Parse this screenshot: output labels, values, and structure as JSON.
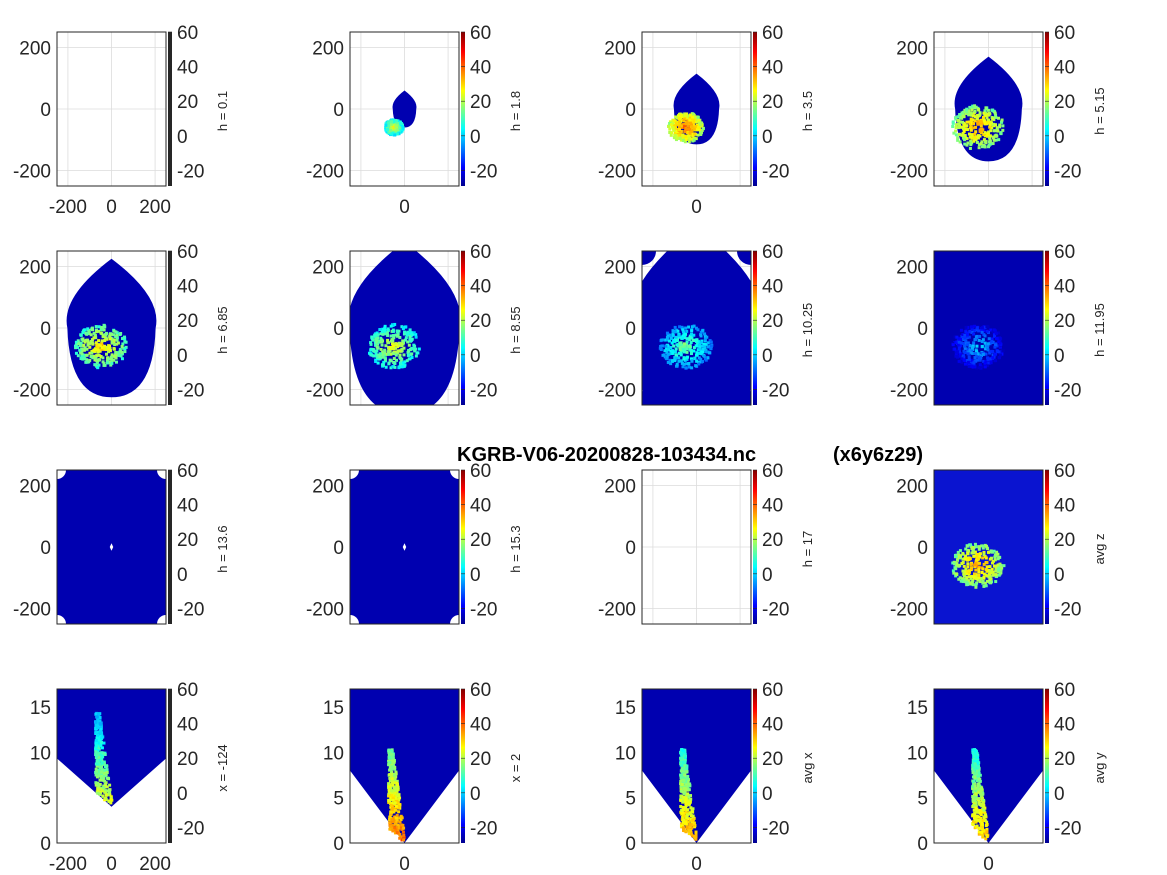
{
  "figure_title": "KGRB-V06-20200828-103434.nc",
  "figure_subtitle": "(x6y6z29)",
  "colormap": "jet",
  "colors": {
    "axis": "#262626",
    "grid": "#dcdcdc",
    "background": "#ffffff",
    "no_echo_blue": "#0000b0"
  },
  "chart_data": [
    {
      "id": "p1",
      "type": "heatmap",
      "view": "plan",
      "cblabel": "h = 0.1",
      "xlim": [
        -250,
        250
      ],
      "ylim": [
        -250,
        250
      ],
      "xticks": [
        "-200",
        "0",
        "200"
      ],
      "yticks": [
        "200",
        "0",
        "-200"
      ],
      "clim": [
        -29,
        60
      ],
      "cbticks": [
        "60",
        "40",
        "20",
        "0",
        "-20"
      ],
      "colorbar_style": "black",
      "content": "empty"
    },
    {
      "id": "p2",
      "type": "heatmap",
      "view": "plan",
      "cblabel": "h = 1.8",
      "xlim": [
        -250,
        250
      ],
      "ylim": [
        -250,
        250
      ],
      "xticks": [
        "0"
      ],
      "yticks": [
        "200",
        "0",
        "-200"
      ],
      "clim": [
        -29,
        60
      ],
      "cbticks": [
        "60",
        "40",
        "20",
        "0",
        "-20"
      ],
      "colorbar_style": "jet",
      "coverage_radius": 60,
      "echo_max_dbz": 30
    },
    {
      "id": "p3",
      "type": "heatmap",
      "view": "plan",
      "cblabel": "h = 3.5",
      "xlim": [
        -250,
        250
      ],
      "ylim": [
        -250,
        250
      ],
      "xticks": [
        "0"
      ],
      "yticks": [
        "200",
        "0",
        "-200"
      ],
      "clim": [
        -29,
        60
      ],
      "cbticks": [
        "60",
        "40",
        "20",
        "0",
        "-20"
      ],
      "colorbar_style": "jet",
      "coverage_radius": 115,
      "echo_max_dbz": 45
    },
    {
      "id": "p4",
      "type": "heatmap",
      "view": "plan",
      "cblabel": "h = 5.15",
      "xlim": [
        -250,
        250
      ],
      "ylim": [
        -250,
        250
      ],
      "xticks": [],
      "yticks": [
        "200",
        "0",
        "-200"
      ],
      "clim": [
        -29,
        60
      ],
      "cbticks": [
        "60",
        "40",
        "20",
        "0",
        "-20"
      ],
      "colorbar_style": "jet",
      "coverage_radius": 170,
      "echo_max_dbz": 40
    },
    {
      "id": "p5",
      "type": "heatmap",
      "view": "plan",
      "cblabel": "h = 6.85",
      "xlim": [
        -250,
        250
      ],
      "ylim": [
        -250,
        250
      ],
      "xticks": [],
      "yticks": [
        "200",
        "0",
        "-200"
      ],
      "clim": [
        -29,
        60
      ],
      "cbticks": [
        "60",
        "40",
        "20",
        "0",
        "-20"
      ],
      "colorbar_style": "black",
      "coverage_radius": 225,
      "echo_max_dbz": 35
    },
    {
      "id": "p6",
      "type": "heatmap",
      "view": "plan",
      "cblabel": "h = 8.55",
      "xlim": [
        -250,
        250
      ],
      "ylim": [
        -250,
        250
      ],
      "xticks": [],
      "yticks": [
        "200",
        "0",
        "-200"
      ],
      "clim": [
        -29,
        60
      ],
      "cbticks": [
        "60",
        "40",
        "20",
        "0",
        "-20"
      ],
      "colorbar_style": "jet",
      "coverage_radius": 280,
      "echo_max_dbz": 30
    },
    {
      "id": "p7",
      "type": "heatmap",
      "view": "plan",
      "cblabel": "h = 10.25",
      "xlim": [
        -250,
        250
      ],
      "ylim": [
        -250,
        250
      ],
      "xticks": [],
      "yticks": [
        "200",
        "0",
        "-200"
      ],
      "clim": [
        -29,
        60
      ],
      "cbticks": [
        "60",
        "40",
        "20",
        "0",
        "-20"
      ],
      "colorbar_style": "jet",
      "coverage_radius": 330,
      "echo_max_dbz": 20
    },
    {
      "id": "p8",
      "type": "heatmap",
      "view": "plan",
      "cblabel": "h = 11.95",
      "xlim": [
        -250,
        250
      ],
      "ylim": [
        -250,
        250
      ],
      "xticks": [],
      "yticks": [
        "200",
        "0",
        "-200"
      ],
      "clim": [
        -29,
        60
      ],
      "cbticks": [
        "60",
        "40",
        "20",
        "0",
        "-20"
      ],
      "colorbar_style": "jet",
      "coverage_radius": 380,
      "echo_max_dbz": 5
    },
    {
      "id": "p9",
      "type": "heatmap",
      "view": "plan",
      "cblabel": "h = 13.6",
      "xlim": [
        -250,
        250
      ],
      "ylim": [
        -250,
        250
      ],
      "xticks": [],
      "yticks": [
        "200",
        "0",
        "-200"
      ],
      "clim": [
        -29,
        60
      ],
      "cbticks": [
        "60",
        "40",
        "20",
        "0",
        "-20"
      ],
      "colorbar_style": "black",
      "content": "full"
    },
    {
      "id": "p10",
      "type": "heatmap",
      "view": "plan",
      "cblabel": "h = 15.3",
      "xlim": [
        -250,
        250
      ],
      "ylim": [
        -250,
        250
      ],
      "xticks": [],
      "yticks": [
        "200",
        "0",
        "-200"
      ],
      "clim": [
        -29,
        60
      ],
      "cbticks": [
        "60",
        "40",
        "20",
        "0",
        "-20"
      ],
      "colorbar_style": "jet",
      "content": "full"
    },
    {
      "id": "p11",
      "type": "heatmap",
      "view": "plan",
      "cblabel": "h = 17",
      "xlim": [
        -250,
        250
      ],
      "ylim": [
        -250,
        250
      ],
      "xticks": [],
      "yticks": [
        "200",
        "0",
        "-200"
      ],
      "clim": [
        -29,
        60
      ],
      "cbticks": [
        "60",
        "40",
        "20",
        "0",
        "-20"
      ],
      "colorbar_style": "jet",
      "content": "empty"
    },
    {
      "id": "p12",
      "type": "heatmap",
      "view": "plan",
      "cblabel": "avg z",
      "xlim": [
        -250,
        250
      ],
      "ylim": [
        -250,
        250
      ],
      "xticks": [],
      "yticks": [
        "200",
        "0",
        "-200"
      ],
      "clim": [
        -29,
        60
      ],
      "cbticks": [
        "60",
        "40",
        "20",
        "0",
        "-20"
      ],
      "colorbar_style": "jet",
      "content": "average",
      "echo_max_dbz": 40
    },
    {
      "id": "p13",
      "type": "heatmap",
      "view": "section",
      "cblabel": "x = -124",
      "xlim": [
        -250,
        250
      ],
      "ylim": [
        0,
        17
      ],
      "xticks": [
        "-200",
        "0",
        "200"
      ],
      "yticks": [
        "15",
        "10",
        "5",
        "0"
      ],
      "clim": [
        -29,
        60
      ],
      "cbticks": [
        "60",
        "40",
        "20",
        "0",
        "-20"
      ],
      "colorbar_style": "black",
      "cone_apex_km": 4,
      "echo_max_dbz": 30
    },
    {
      "id": "p14",
      "type": "heatmap",
      "view": "section",
      "cblabel": "x = 2",
      "xlim": [
        -250,
        250
      ],
      "ylim": [
        0,
        17
      ],
      "xticks": [
        "0"
      ],
      "yticks": [
        "15",
        "10",
        "5",
        "0"
      ],
      "clim": [
        -29,
        60
      ],
      "cbticks": [
        "60",
        "40",
        "20",
        "0",
        "-20"
      ],
      "colorbar_style": "jet",
      "cone_apex_km": 0,
      "echo_max_dbz": 45
    },
    {
      "id": "p15",
      "type": "heatmap",
      "view": "section",
      "cblabel": "avg x",
      "xlim": [
        -250,
        250
      ],
      "ylim": [
        0,
        17
      ],
      "xticks": [
        "0"
      ],
      "yticks": [
        "15",
        "10",
        "5",
        "0"
      ],
      "clim": [
        -29,
        60
      ],
      "cbticks": [
        "60",
        "40",
        "20",
        "0",
        "-20"
      ],
      "colorbar_style": "jet",
      "cone_apex_km": 0,
      "echo_max_dbz": 40
    },
    {
      "id": "p16",
      "type": "heatmap",
      "view": "section",
      "cblabel": "avg y",
      "xlim": [
        -250,
        250
      ],
      "ylim": [
        0,
        17
      ],
      "xticks": [
        "0"
      ],
      "yticks": [
        "15",
        "10",
        "5",
        "0"
      ],
      "clim": [
        -29,
        60
      ],
      "cbticks": [
        "60",
        "40",
        "20",
        "0",
        "-20"
      ],
      "colorbar_style": "jet",
      "cone_apex_km": 0,
      "echo_max_dbz": 38
    }
  ]
}
